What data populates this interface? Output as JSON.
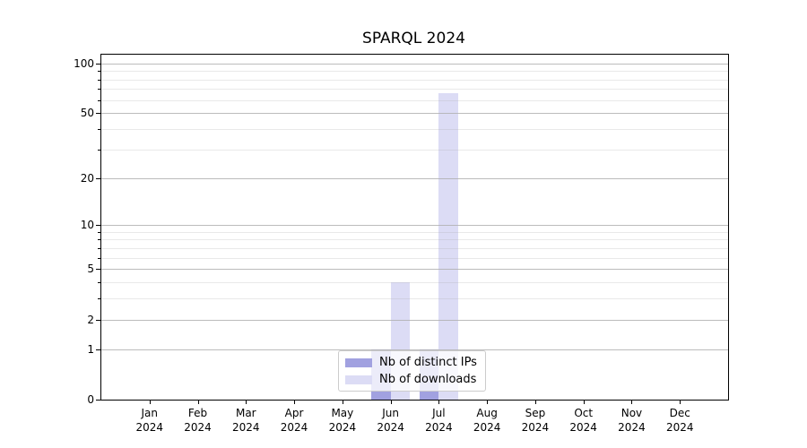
{
  "title": "SPARQL 2024",
  "chart_data": {
    "type": "bar",
    "title": "SPARQL 2024",
    "categories": [
      "Jan",
      "Feb",
      "Mar",
      "Apr",
      "May",
      "Jun",
      "Jul",
      "Aug",
      "Sep",
      "Oct",
      "Nov",
      "Dec"
    ],
    "category_year": "2024",
    "series": [
      {
        "name": "Nb of distinct IPs",
        "color": "#a1a1e0",
        "values": [
          0,
          0,
          0,
          0,
          0,
          1,
          1,
          0,
          0,
          0,
          0,
          0
        ]
      },
      {
        "name": "Nb of downloads",
        "color": "#dcdcf5",
        "values": [
          0,
          0,
          0,
          0,
          0,
          4,
          66,
          0,
          0,
          0,
          0,
          0
        ]
      }
    ],
    "xlabel": "",
    "ylabel": "",
    "y_scale": "log1p",
    "y_ticks": [
      0,
      1,
      2,
      5,
      10,
      20,
      50,
      100
    ],
    "y_minor_ticks": [
      3,
      4,
      6,
      7,
      8,
      9,
      30,
      40,
      60,
      70,
      80,
      90
    ],
    "ylim": [
      0,
      113
    ],
    "grid": "both",
    "legend_position": "lower center"
  },
  "legend": {
    "items": [
      {
        "label": "Nb of distinct IPs",
        "color": "#a1a1e0"
      },
      {
        "label": "Nb of downloads",
        "color": "#dcdcf5"
      }
    ]
  },
  "colors": {
    "major_grid": "rgba(176,176,176,0.85)",
    "minor_grid": "rgba(176,176,176,0.28)",
    "spine": "#000000",
    "background": "#ffffff"
  }
}
